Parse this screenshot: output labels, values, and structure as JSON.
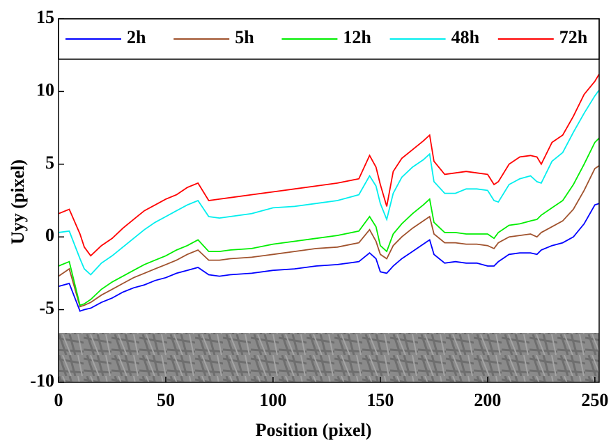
{
  "chart_data": {
    "type": "line",
    "x_label": "Position (pixel)",
    "y_label": "Uyy (pixel)",
    "x": [
      0,
      5,
      10,
      12,
      15,
      20,
      25,
      30,
      35,
      40,
      45,
      50,
      55,
      60,
      65,
      70,
      75,
      80,
      90,
      100,
      110,
      120,
      130,
      140,
      145,
      148,
      150,
      153,
      156,
      160,
      165,
      170,
      173,
      175,
      180,
      185,
      190,
      195,
      200,
      203,
      205,
      210,
      215,
      220,
      223,
      225,
      230,
      235,
      240,
      245,
      250,
      252
    ],
    "series": [
      {
        "name": "2h",
        "color": "#0000ff",
        "values": [
          -3.4,
          -3.2,
          -5.1,
          -5.0,
          -4.9,
          -4.5,
          -4.2,
          -3.8,
          -3.5,
          -3.3,
          -3.0,
          -2.8,
          -2.5,
          -2.3,
          -2.1,
          -2.6,
          -2.7,
          -2.6,
          -2.5,
          -2.3,
          -2.2,
          -2.0,
          -1.9,
          -1.7,
          -1.1,
          -1.5,
          -2.4,
          -2.5,
          -2.0,
          -1.5,
          -1.0,
          -0.5,
          -0.2,
          -1.2,
          -1.8,
          -1.7,
          -1.8,
          -1.8,
          -2.0,
          -2.0,
          -1.7,
          -1.2,
          -1.1,
          -1.1,
          -1.2,
          -0.9,
          -0.6,
          -0.4,
          0.0,
          0.9,
          2.2,
          2.3
        ]
      },
      {
        "name": "5h",
        "color": "#a0522d",
        "values": [
          -2.7,
          -2.2,
          -4.8,
          -4.7,
          -4.5,
          -4.0,
          -3.6,
          -3.2,
          -2.8,
          -2.5,
          -2.2,
          -1.9,
          -1.6,
          -1.2,
          -0.9,
          -1.6,
          -1.6,
          -1.5,
          -1.4,
          -1.2,
          -1.0,
          -0.8,
          -0.7,
          -0.4,
          0.5,
          -0.3,
          -1.2,
          -1.5,
          -0.6,
          0.0,
          0.6,
          1.1,
          1.4,
          0.2,
          -0.4,
          -0.4,
          -0.5,
          -0.5,
          -0.6,
          -0.8,
          -0.4,
          0.0,
          0.1,
          0.2,
          0.0,
          0.3,
          0.7,
          1.1,
          1.9,
          3.2,
          4.7,
          4.9
        ]
      },
      {
        "name": "12h",
        "color": "#00ee00",
        "values": [
          -2.0,
          -1.7,
          -4.7,
          -4.6,
          -4.3,
          -3.6,
          -3.1,
          -2.7,
          -2.3,
          -1.9,
          -1.6,
          -1.3,
          -0.9,
          -0.6,
          -0.2,
          -1.0,
          -1.0,
          -0.9,
          -0.8,
          -0.5,
          -0.3,
          -0.1,
          0.1,
          0.4,
          1.4,
          0.7,
          -0.6,
          -1.0,
          0.2,
          0.9,
          1.6,
          2.2,
          2.6,
          1.0,
          0.3,
          0.3,
          0.2,
          0.2,
          0.2,
          -0.1,
          0.3,
          0.8,
          0.9,
          1.1,
          1.2,
          1.5,
          2.0,
          2.5,
          3.6,
          5.0,
          6.5,
          6.8
        ]
      },
      {
        "name": "48h",
        "color": "#00eeee",
        "values": [
          0.3,
          0.4,
          -1.5,
          -2.2,
          -2.6,
          -1.8,
          -1.3,
          -0.7,
          -0.1,
          0.5,
          1.0,
          1.4,
          1.8,
          2.2,
          2.5,
          1.4,
          1.3,
          1.4,
          1.6,
          2.0,
          2.1,
          2.3,
          2.5,
          2.9,
          4.2,
          3.5,
          2.3,
          1.2,
          3.0,
          4.1,
          4.8,
          5.3,
          5.7,
          3.8,
          3.0,
          3.0,
          3.3,
          3.3,
          3.2,
          2.5,
          2.4,
          3.6,
          4.0,
          4.2,
          3.8,
          3.7,
          5.2,
          5.8,
          7.2,
          8.5,
          9.7,
          10.1
        ]
      },
      {
        "name": "72h",
        "color": "#ff0000",
        "values": [
          1.6,
          1.9,
          0.2,
          -0.7,
          -1.3,
          -0.6,
          -0.1,
          0.6,
          1.2,
          1.8,
          2.2,
          2.6,
          2.9,
          3.4,
          3.7,
          2.5,
          2.6,
          2.7,
          2.9,
          3.1,
          3.3,
          3.5,
          3.7,
          4.0,
          5.6,
          4.8,
          3.6,
          2.1,
          4.5,
          5.4,
          6.0,
          6.6,
          7.0,
          5.2,
          4.3,
          4.4,
          4.5,
          4.4,
          4.3,
          3.6,
          3.8,
          5.0,
          5.5,
          5.6,
          5.5,
          5.0,
          6.5,
          7.0,
          8.3,
          9.8,
          10.7,
          11.2
        ]
      }
    ],
    "xlim": [
      0,
      252
    ],
    "ylim": [
      -10,
      15
    ],
    "xticks": [
      0,
      50,
      100,
      150,
      200,
      250
    ],
    "yticks": [
      -10,
      -5,
      0,
      5,
      10,
      15
    ]
  }
}
